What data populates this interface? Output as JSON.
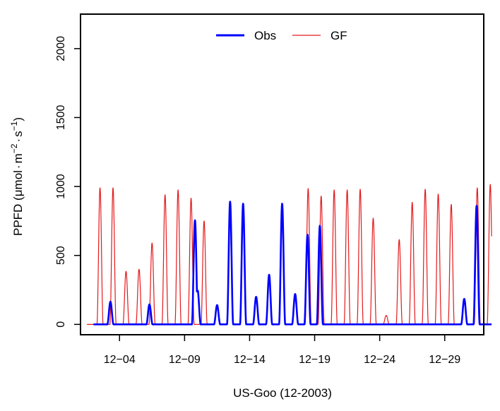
{
  "chart_data": {
    "type": "line",
    "xlabel": "US-Goo (12-2003)",
    "ylabel": {
      "base": "PPFD (",
      "mu": "μ",
      "mol": "mol",
      "dot": "·",
      "m": "m",
      "m_exp": "−2",
      "s": "s",
      "s_exp": "−1",
      "close": ")"
    },
    "xlim": [
      0.0,
      31.0
    ],
    "ylim": [
      -75,
      2250
    ],
    "x_ticks": [
      {
        "value": 3.0,
        "label": "12−04"
      },
      {
        "value": 8.0,
        "label": "12−09"
      },
      {
        "value": 13.0,
        "label": "12−14"
      },
      {
        "value": 18.0,
        "label": "12−19"
      },
      {
        "value": 23.0,
        "label": "12−24"
      },
      {
        "value": 28.0,
        "label": "12−29"
      }
    ],
    "y_ticks": [
      {
        "value": 0,
        "label": "0"
      },
      {
        "value": 500,
        "label": "500"
      },
      {
        "value": 1000,
        "label": "1000"
      },
      {
        "value": 1500,
        "label": "1500"
      },
      {
        "value": 2000,
        "label": "2000"
      }
    ],
    "legend": {
      "position": "top-center"
    },
    "series": [
      {
        "name": "GF",
        "color": "#e41a1c",
        "line_width": 1.2,
        "x_range": [
          0.5,
          31.6
        ],
        "peaks": [
          {
            "day": 1.5,
            "value": 990
          },
          {
            "day": 2.5,
            "value": 990
          },
          {
            "day": 3.5,
            "value": 385
          },
          {
            "day": 4.5,
            "value": 400
          },
          {
            "day": 5.5,
            "value": 590
          },
          {
            "day": 6.5,
            "value": 940
          },
          {
            "day": 7.5,
            "value": 975
          },
          {
            "day": 8.5,
            "value": 915
          },
          {
            "day": 9.5,
            "value": 750
          },
          {
            "day": 10.5,
            "value": 140
          },
          {
            "day": 11.5,
            "value": 890
          },
          {
            "day": 12.5,
            "value": 875
          },
          {
            "day": 13.5,
            "value": 200
          },
          {
            "day": 14.5,
            "value": 360
          },
          {
            "day": 15.5,
            "value": 875
          },
          {
            "day": 16.5,
            "value": 220
          },
          {
            "day": 17.5,
            "value": 985
          },
          {
            "day": 18.5,
            "value": 930
          },
          {
            "day": 19.5,
            "value": 975
          },
          {
            "day": 20.5,
            "value": 975
          },
          {
            "day": 21.5,
            "value": 980
          },
          {
            "day": 22.5,
            "value": 770
          },
          {
            "day": 23.5,
            "value": 65
          },
          {
            "day": 24.5,
            "value": 615
          },
          {
            "day": 25.5,
            "value": 885
          },
          {
            "day": 26.5,
            "value": 980
          },
          {
            "day": 27.5,
            "value": 945
          },
          {
            "day": 28.5,
            "value": 870
          },
          {
            "day": 29.5,
            "value": 185
          },
          {
            "day": 30.5,
            "value": 990
          },
          {
            "day": 31.5,
            "value": 1015
          }
        ]
      },
      {
        "name": "Obs",
        "color": "#0000ff",
        "line_width": 2.6,
        "x_range": [
          1.0,
          31.6
        ],
        "gaps": [
          [
            8.95,
            9.0
          ]
        ],
        "peaks": [
          {
            "day": 2.3,
            "value": 165
          },
          {
            "day": 5.3,
            "value": 145
          },
          {
            "day": 8.8,
            "value": 755
          },
          {
            "day": 9.0,
            "value": 250
          },
          {
            "day": 10.5,
            "value": 140
          },
          {
            "day": 11.5,
            "value": 890
          },
          {
            "day": 12.5,
            "value": 875
          },
          {
            "day": 13.5,
            "value": 200
          },
          {
            "day": 14.5,
            "value": 360
          },
          {
            "day": 15.5,
            "value": 875
          },
          {
            "day": 16.5,
            "value": 220
          },
          {
            "day": 17.45,
            "value": 650
          },
          {
            "day": 18.4,
            "value": 715
          },
          {
            "day": 29.5,
            "value": 185
          },
          {
            "day": 30.45,
            "value": 860
          }
        ]
      }
    ]
  }
}
